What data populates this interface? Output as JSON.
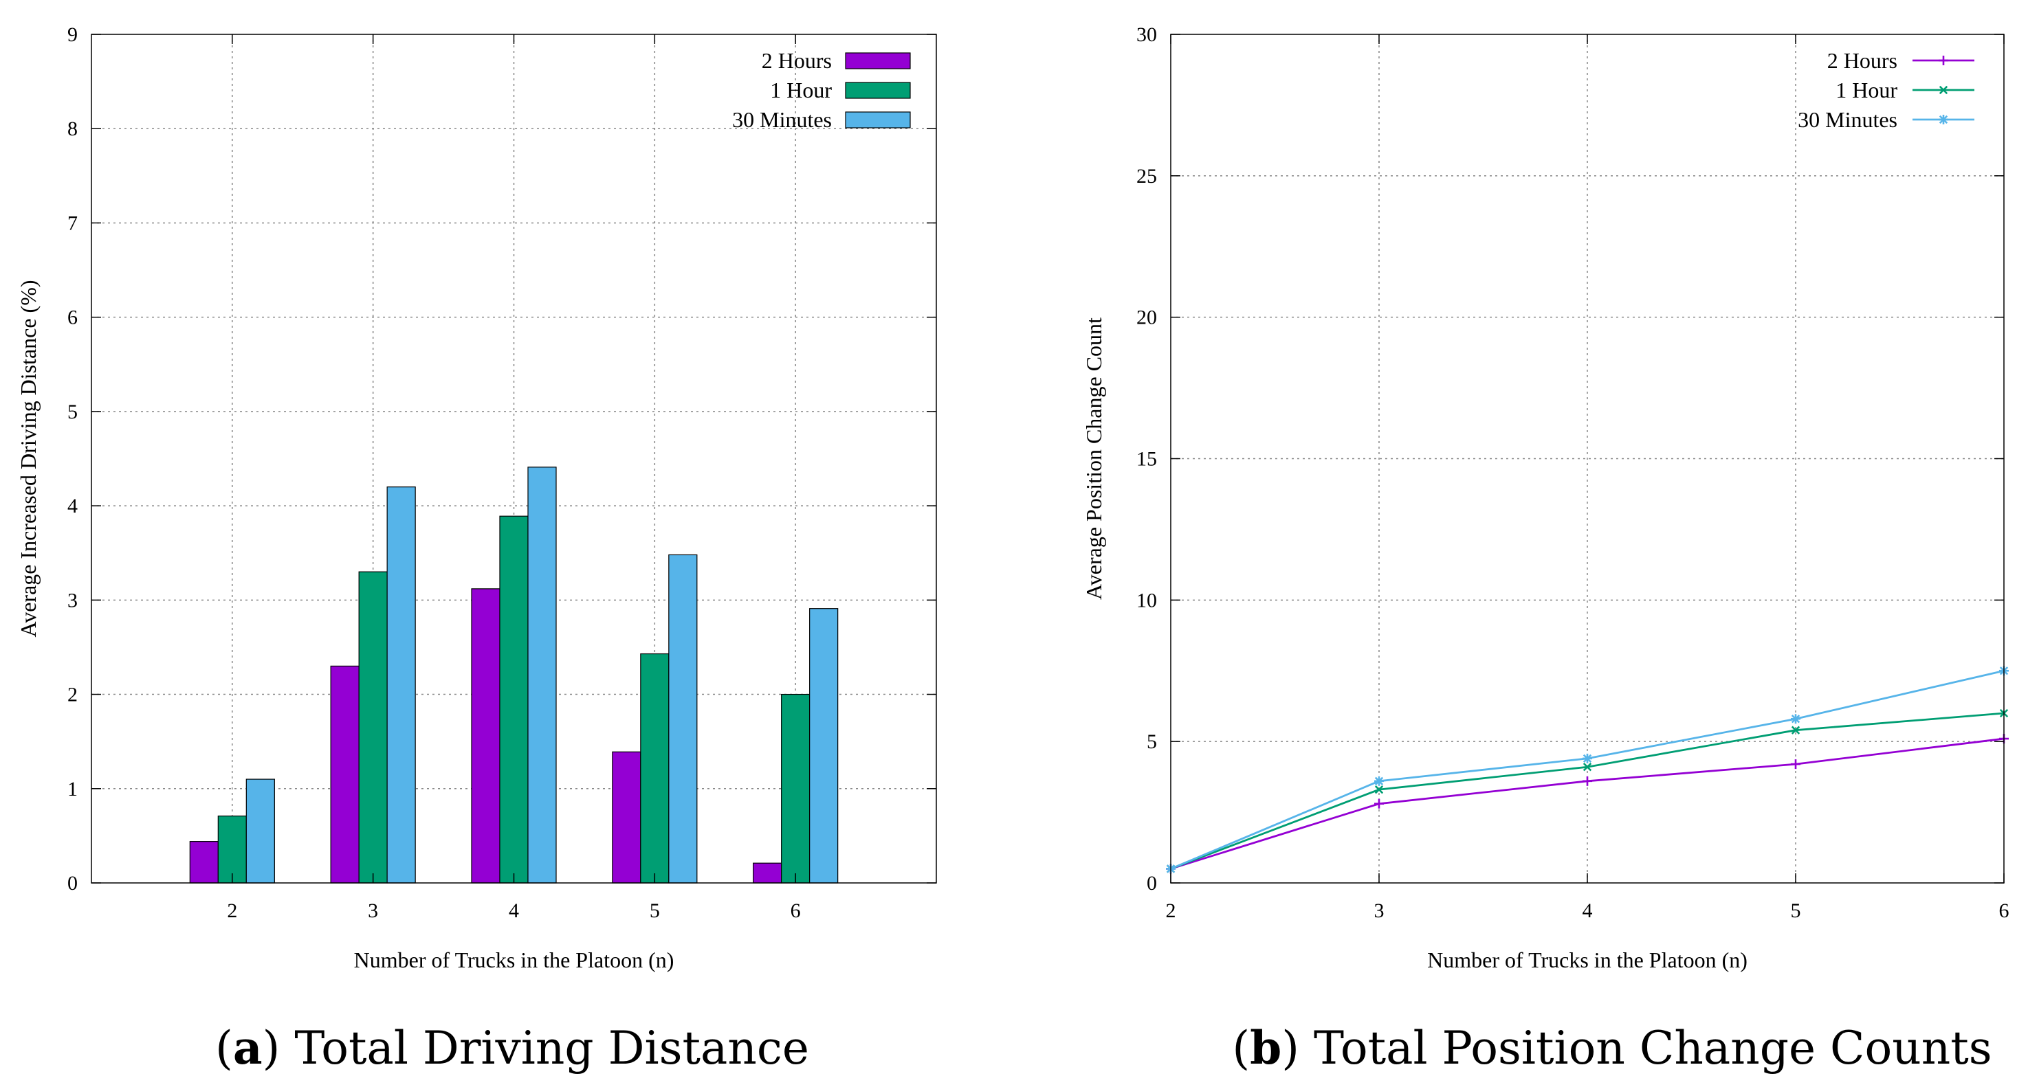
{
  "chart_data": [
    {
      "type": "bar",
      "caption_letter": "a",
      "caption_text": "Total Driving Distance",
      "xlabel": "Number of Trucks in the Platoon (n)",
      "ylabel": "Average Increased Driving Distance (%)",
      "categories": [
        "2",
        "3",
        "4",
        "5",
        "6"
      ],
      "ylim": [
        0,
        9
      ],
      "yticks": [
        "0",
        "1",
        "2",
        "3",
        "4",
        "5",
        "6",
        "7",
        "8",
        "9"
      ],
      "grid": true,
      "legend_position": "top-right",
      "series": [
        {
          "name": "2 Hours",
          "color": "#9400d3",
          "values": [
            0.44,
            2.3,
            3.12,
            1.39,
            0.21
          ]
        },
        {
          "name": "1 Hour",
          "color": "#009e73",
          "values": [
            0.71,
            3.3,
            3.89,
            2.43,
            2.0
          ]
        },
        {
          "name": "30 Minutes",
          "color": "#56b4e9",
          "values": [
            1.1,
            4.2,
            4.41,
            3.48,
            2.91
          ]
        }
      ]
    },
    {
      "type": "line",
      "caption_letter": "b",
      "caption_text": "Total Position Change Counts",
      "xlabel": "Number of Trucks in the Platoon (n)",
      "ylabel": "Average Position Change Count",
      "x": [
        2,
        3,
        4,
        5,
        6
      ],
      "xticks": [
        "2",
        "3",
        "4",
        "5",
        "6"
      ],
      "xlim": [
        2,
        6
      ],
      "ylim": [
        0,
        30
      ],
      "yticks": [
        "0",
        "5",
        "10",
        "15",
        "20",
        "25",
        "30"
      ],
      "grid": true,
      "legend_position": "top-right",
      "series": [
        {
          "name": "2 Hours",
          "color": "#9400d3",
          "marker": "plus",
          "values": [
            0.5,
            2.8,
            3.6,
            4.2,
            5.1
          ]
        },
        {
          "name": "1 Hour",
          "color": "#009e73",
          "marker": "cross",
          "values": [
            0.5,
            3.3,
            4.1,
            5.4,
            6.0
          ]
        },
        {
          "name": "30 Minutes",
          "color": "#56b4e9",
          "marker": "star",
          "values": [
            0.5,
            3.6,
            4.4,
            5.8,
            7.5
          ]
        }
      ]
    }
  ]
}
